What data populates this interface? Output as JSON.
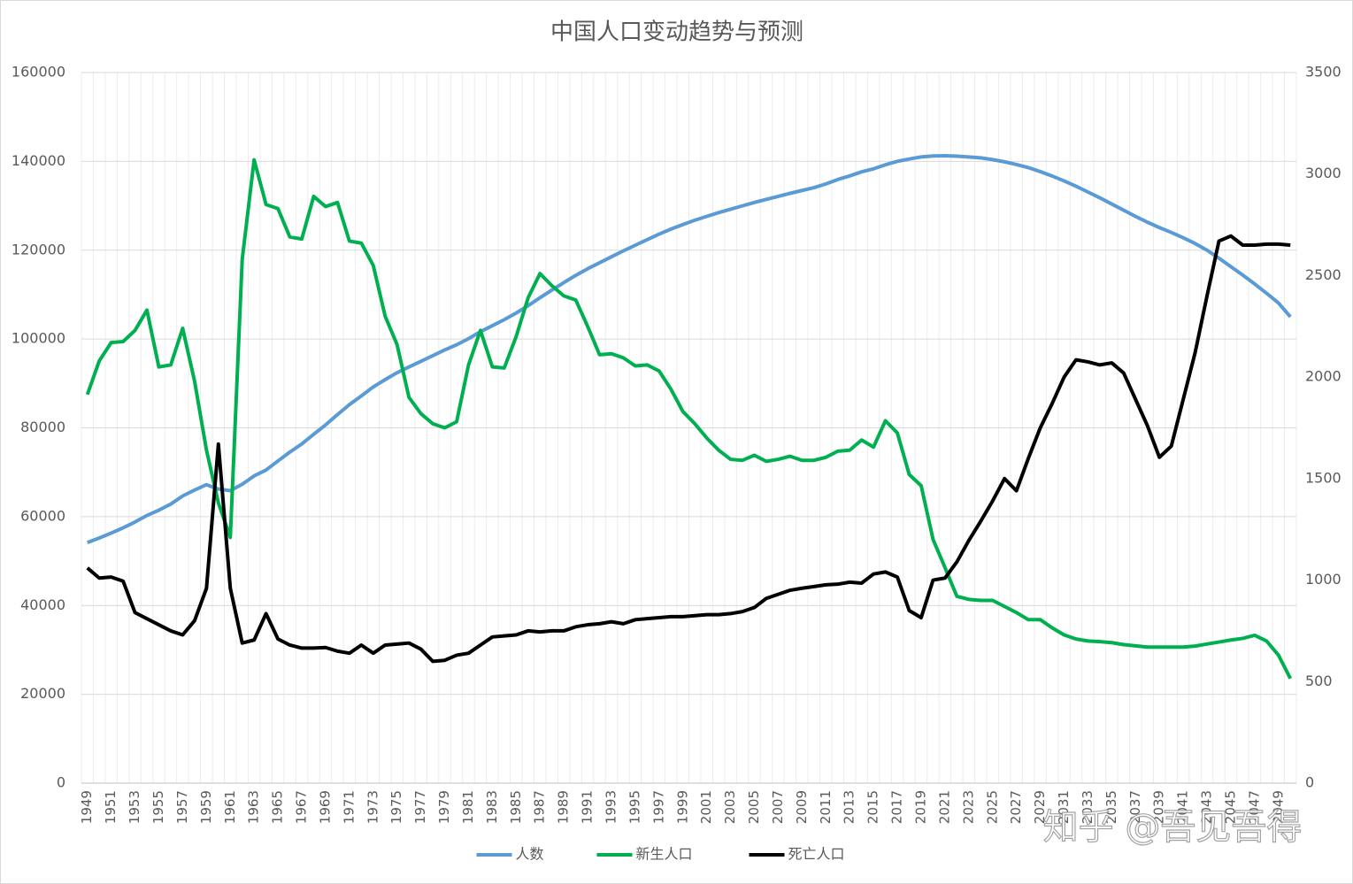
{
  "chart_data": {
    "type": "line",
    "title": "中国人口变动趋势与预测",
    "annotations": [
      "知乎 @吾见吾得"
    ],
    "categories": [
      "1949",
      null,
      "1951",
      null,
      "1953",
      null,
      "1955",
      null,
      "1957",
      null,
      "1959",
      null,
      "1961",
      null,
      "1963",
      null,
      "1965",
      null,
      "1967",
      null,
      "1969",
      null,
      "1971",
      null,
      "1973",
      null,
      "1975",
      null,
      "1977",
      null,
      "1979",
      null,
      "1981",
      null,
      "1983",
      null,
      "1985",
      null,
      "1987",
      null,
      "1989",
      null,
      "1991",
      null,
      "1993",
      null,
      "1995",
      null,
      "1997",
      null,
      "1999",
      null,
      "2001",
      null,
      "2003",
      null,
      "2005",
      null,
      "2007",
      null,
      "2009",
      null,
      "2011",
      null,
      "2013",
      null,
      "2015",
      null,
      "2017",
      null,
      "2019",
      null,
      "2021",
      null,
      "2023",
      null,
      "2025",
      null,
      "2027",
      null,
      "2029",
      null,
      "2031",
      null,
      "2033",
      null,
      "2035",
      null,
      "2037",
      null,
      "2039",
      null,
      "2041",
      null,
      "2043",
      null,
      "2045",
      null,
      "2047",
      null,
      "2049",
      null
    ],
    "series": [
      {
        "name": "人数",
        "color": "#5b9bd5",
        "axis": "y",
        "values": [
          54167,
          55196,
          56300,
          57482,
          58796,
          60266,
          61465,
          62828,
          64653,
          65994,
          67207,
          66207,
          65859,
          67295,
          69172,
          70499,
          72538,
          74542,
          76368,
          78534,
          80671,
          82992,
          85229,
          87177,
          89211,
          90859,
          92420,
          93717,
          94974,
          96259,
          97542,
          98705,
          100072,
          101654,
          103008,
          104357,
          105851,
          107507,
          109300,
          111026,
          112704,
          114333,
          115823,
          117171,
          118517,
          119850,
          121121,
          122389,
          123626,
          124761,
          125786,
          126743,
          127627,
          128453,
          129227,
          129988,
          130756,
          131448,
          132129,
          132802,
          133450,
          134091,
          134916,
          135922,
          136726,
          137646,
          138326,
          139232,
          140011,
          140541,
          141008,
          141212,
          141260,
          141175,
          141000,
          140800,
          140400,
          139900,
          139300,
          138600,
          137700,
          136700,
          135600,
          134400,
          133100,
          131800,
          130400,
          129000,
          127600,
          126300,
          125100,
          124000,
          122800,
          121500,
          120000,
          118200,
          116300,
          114400,
          112400,
          110300,
          108100,
          105000
        ]
      },
      {
        "name": "新生人口",
        "color": "#00b050",
        "axis": "y2",
        "values": [
          1914,
          2080,
          2170,
          2175,
          2230,
          2330,
          2050,
          2060,
          2240,
          1980,
          1640,
          1380,
          1210,
          2580,
          3070,
          2850,
          2830,
          2690,
          2680,
          2890,
          2840,
          2860,
          2670,
          2660,
          2550,
          2300,
          2160,
          1900,
          1820,
          1770,
          1750,
          1780,
          2060,
          2230,
          2050,
          2045,
          2200,
          2390,
          2510,
          2450,
          2400,
          2380,
          2250,
          2110,
          2115,
          2095,
          2055,
          2060,
          2030,
          1940,
          1830,
          1770,
          1700,
          1640,
          1595,
          1590,
          1615,
          1585,
          1595,
          1610,
          1590,
          1590,
          1605,
          1635,
          1640,
          1690,
          1655,
          1785,
          1725,
          1520,
          1465,
          1200,
          1062,
          920,
          905,
          900,
          900,
          870,
          840,
          805,
          805,
          765,
          730,
          710,
          700,
          697,
          692,
          682,
          676,
          670,
          670,
          670,
          670,
          675,
          685,
          695,
          705,
          713,
          728,
          700,
          630,
          515
        ]
      },
      {
        "name": "死亡人口",
        "color": "#000000",
        "axis": "y2",
        "values": [
          1060,
          1010,
          1015,
          995,
          840,
          810,
          780,
          750,
          730,
          800,
          960,
          1670,
          960,
          690,
          705,
          835,
          710,
          680,
          665,
          665,
          668,
          650,
          640,
          680,
          640,
          680,
          685,
          690,
          660,
          600,
          605,
          630,
          640,
          680,
          720,
          725,
          730,
          750,
          745,
          750,
          750,
          770,
          780,
          785,
          795,
          785,
          805,
          810,
          815,
          820,
          820,
          825,
          830,
          830,
          835,
          845,
          865,
          910,
          930,
          950,
          960,
          968,
          977,
          980,
          990,
          985,
          1030,
          1040,
          1015,
          850,
          815,
          1000,
          1010,
          1090,
          1195,
          1290,
          1390,
          1500,
          1440,
          1600,
          1750,
          1870,
          2000,
          2085,
          2075,
          2060,
          2070,
          2020,
          1890,
          1760,
          1605,
          1660,
          1890,
          2120,
          2400,
          2670,
          2695,
          2650,
          2650,
          2655,
          2655,
          2650
        ]
      }
    ],
    "ylim": [
      0,
      160000
    ],
    "yticks": [
      0,
      20000,
      40000,
      60000,
      80000,
      100000,
      120000,
      140000,
      160000
    ],
    "y2lim": [
      0,
      3500
    ],
    "y2ticks": [
      0,
      500,
      1000,
      1500,
      2000,
      2500,
      3000,
      3500
    ],
    "grid": true,
    "legend": "bottom"
  }
}
